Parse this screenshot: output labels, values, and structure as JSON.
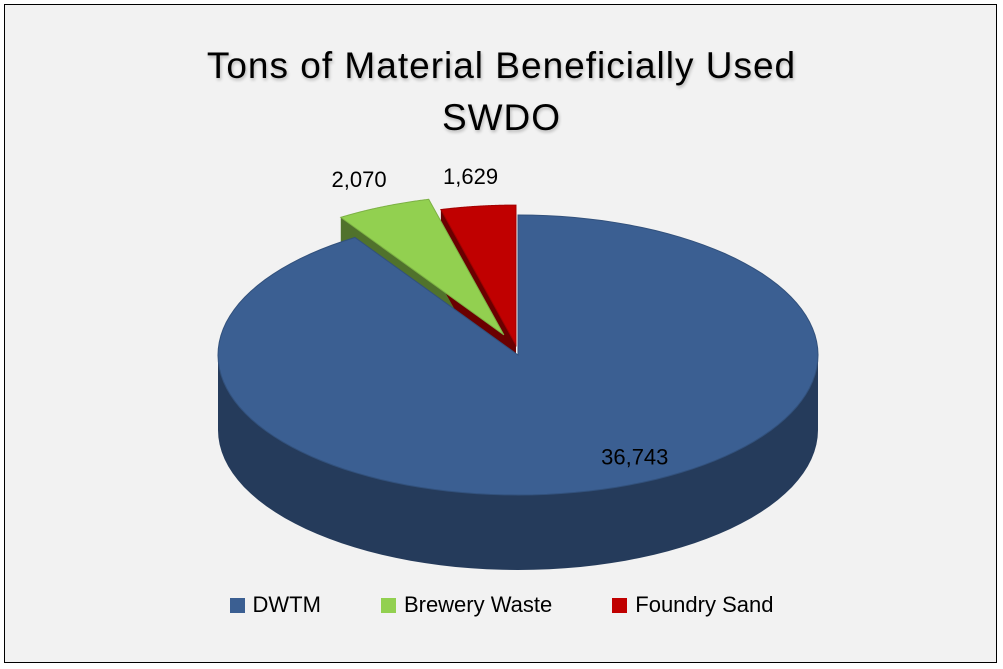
{
  "chart_data": {
    "type": "pie",
    "title": "Tons of Material Beneficially Used SWDO",
    "categories": [
      "DWTM",
      "Brewery Waste",
      "Foundry Sand"
    ],
    "values": [
      36743,
      2070,
      1629
    ],
    "value_labels": [
      "36,743",
      "2,070",
      "1,629"
    ],
    "colors": [
      "#3b5f92",
      "#92d050",
      "#c00000"
    ],
    "legend": "bottom"
  }
}
